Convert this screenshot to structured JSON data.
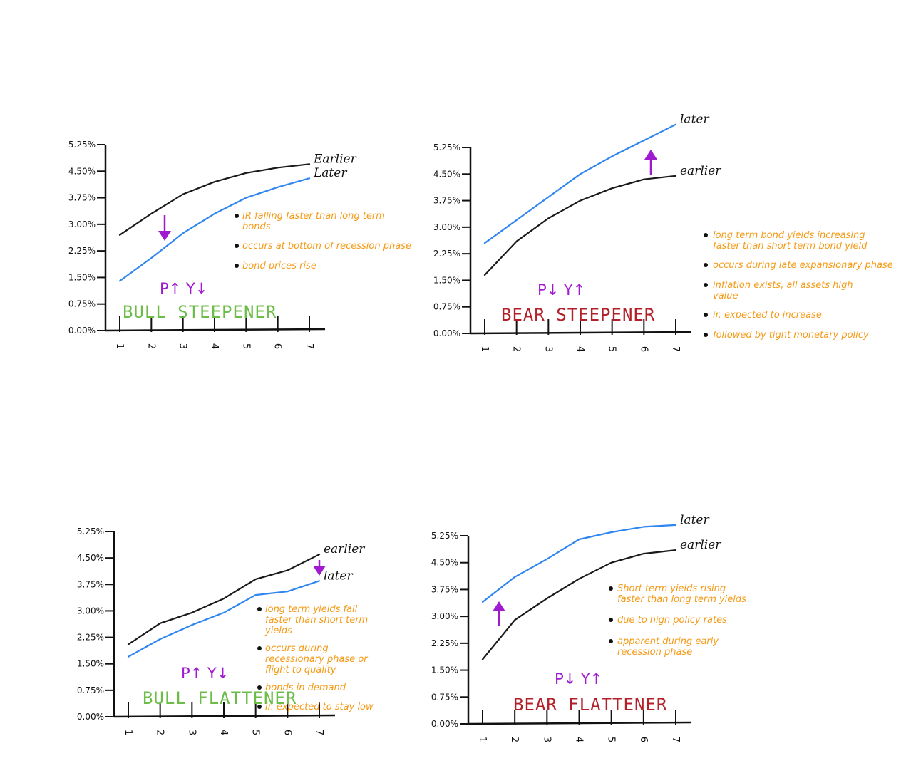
{
  "colors": {
    "axis": "#111111",
    "earlier_line": "#1a1a1a",
    "later_line": "#2f86f0",
    "arrow": "#a01bcf",
    "note": "#f59a16",
    "bull_title": "#6cbc48",
    "bear_title": "#b3202a"
  },
  "chart_data": [
    {
      "type": "line",
      "title": "BULL STEEPENER",
      "ratio_label": "P↑ Y↓",
      "y_ticks": [
        "5.25%",
        "4.50%",
        "3.75%",
        "3.00%",
        "2.25%",
        "1.50%",
        "0.75%",
        "0.00%"
      ],
      "x_ticks": [
        "1",
        "2",
        "3",
        "4",
        "5",
        "6",
        "7"
      ],
      "ylim": [
        0,
        5.25
      ],
      "arrow_direction": "down",
      "series": [
        {
          "name": "Earlier",
          "x": [
            1,
            2,
            3,
            4,
            5,
            6,
            7
          ],
          "values": [
            2.7,
            3.3,
            3.85,
            4.2,
            4.45,
            4.6,
            4.7
          ]
        },
        {
          "name": "Later",
          "x": [
            1,
            2,
            3,
            4,
            5,
            6,
            7
          ],
          "values": [
            1.4,
            2.05,
            2.75,
            3.3,
            3.75,
            4.05,
            4.3
          ]
        }
      ],
      "notes": [
        "IR falling faster than long term bonds",
        "occurs at bottom of recession phase",
        "bond prices rise"
      ]
    },
    {
      "type": "line",
      "title": "BEAR STEEPENER",
      "ratio_label": "P↓ Y↑",
      "y_ticks": [
        "5.25%",
        "4.50%",
        "3.75%",
        "3.00%",
        "2.25%",
        "1.50%",
        "0.75%",
        "0.00%"
      ],
      "x_ticks": [
        "1",
        "2",
        "3",
        "4",
        "5",
        "6",
        "7"
      ],
      "ylim": [
        0,
        5.25
      ],
      "arrow_direction": "up",
      "series": [
        {
          "name": "later",
          "x": [
            1,
            2,
            3,
            4,
            5,
            6,
            7
          ],
          "values": [
            2.55,
            3.2,
            3.85,
            4.5,
            5.0,
            5.45,
            5.9
          ]
        },
        {
          "name": "earlier",
          "x": [
            1,
            2,
            3,
            4,
            5,
            6,
            7
          ],
          "values": [
            1.65,
            2.6,
            3.25,
            3.75,
            4.1,
            4.35,
            4.45
          ]
        }
      ],
      "notes": [
        "long term bond yields increasing faster than short term bond yield",
        "occurs during late expansionary phase",
        "inflation exists, all assets high value",
        "ir. expected to increase",
        "followed by tight monetary policy"
      ]
    },
    {
      "type": "line",
      "title": "BULL FLATTENER",
      "ratio_label": "P↑ Y↓",
      "y_ticks": [
        "5.25%",
        "4.50%",
        "3.75%",
        "3.00%",
        "2.25%",
        "1.50%",
        "0.75%",
        "0.00%"
      ],
      "x_ticks": [
        "1",
        "2",
        "3",
        "4",
        "5",
        "6",
        "7"
      ],
      "ylim": [
        0,
        5.25
      ],
      "arrow_direction": "down",
      "series": [
        {
          "name": "earlier",
          "x": [
            1,
            2,
            3,
            4,
            5,
            6,
            7
          ],
          "values": [
            2.05,
            2.65,
            2.95,
            3.35,
            3.9,
            4.15,
            4.6
          ]
        },
        {
          "name": "later",
          "x": [
            1,
            2,
            3,
            4,
            5,
            6,
            7
          ],
          "values": [
            1.7,
            2.2,
            2.6,
            2.95,
            3.45,
            3.55,
            3.85
          ]
        }
      ],
      "notes": [
        "long term yields fall faster than short term yields",
        "occurs during recessionary phase or flight to quality",
        "bonds in demand",
        "ir. expected to stay low"
      ]
    },
    {
      "type": "line",
      "title": "BEAR FLATTENER",
      "ratio_label": "P↓ Y↑",
      "y_ticks": [
        "5.25%",
        "4.50%",
        "3.75%",
        "3.00%",
        "2.25%",
        "1.50%",
        "0.75%",
        "0.00%"
      ],
      "x_ticks": [
        "1",
        "2",
        "3",
        "4",
        "5",
        "6",
        "7"
      ],
      "ylim": [
        0,
        5.25
      ],
      "arrow_direction": "up",
      "series": [
        {
          "name": "later",
          "x": [
            1,
            2,
            3,
            4,
            5,
            6,
            7
          ],
          "values": [
            3.4,
            4.1,
            4.6,
            5.15,
            5.35,
            5.5,
            5.55
          ]
        },
        {
          "name": "earlier",
          "x": [
            1,
            2,
            3,
            4,
            5,
            6,
            7
          ],
          "values": [
            1.8,
            2.9,
            3.5,
            4.05,
            4.5,
            4.75,
            4.85
          ]
        }
      ],
      "notes": [
        "Short term yields rising faster than long term yields",
        "due to high policy rates",
        "apparent during early recession phase"
      ]
    }
  ]
}
